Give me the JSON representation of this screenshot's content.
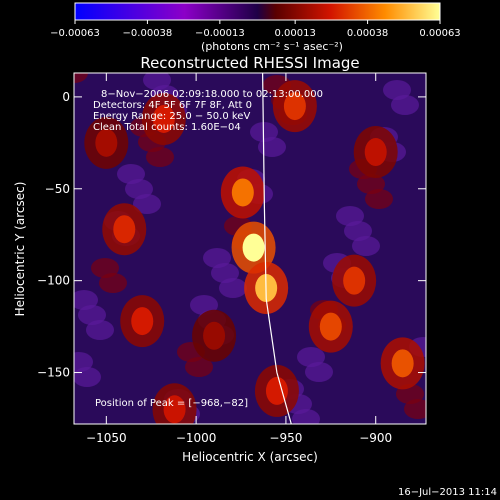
{
  "chart_data": {
    "type": "heatmap",
    "title": "Reconstructed RHESSI Image",
    "xlabel": "Heliocentric X (arcsec)",
    "ylabel": "Heliocentric Y (arcsec)",
    "xlim": [
      -1068,
      -872
    ],
    "ylim": [
      -178,
      13
    ],
    "x_ticks": [
      -1050,
      -1000,
      -950,
      -900
    ],
    "x_tick_labels": [
      "−1050",
      "−1000",
      "−950",
      "−900"
    ],
    "y_ticks": [
      0,
      -50,
      -100,
      -150
    ],
    "y_tick_labels": [
      "0",
      "−50",
      "−100",
      "−150"
    ],
    "colorbar": {
      "min": -0.00063,
      "max": 0.00063,
      "ticks": [
        -0.00063,
        -0.00038,
        -0.00013,
        0.00013,
        0.00038,
        0.00063
      ],
      "tick_labels": [
        "−0.00063",
        "−0.00038",
        "−0.00013",
        "0.00013",
        "0.00038",
        "0.00063"
      ],
      "units": "(photons cm⁻² s⁻¹ asec⁻²)"
    },
    "annotations": [
      "8−Nov−2006 02:09:18.000 to 02:13:00.000",
      "Detectors: 4F 5F 6F 7F 8F, Att 0",
      "Energy Range: 25.0 − 50.0 keV",
      "Clean    Total counts: 1.60E−04"
    ],
    "peak_text": "Position of Peak = [−968,−82]",
    "peak": [
      -968,
      -82
    ],
    "sources": [
      {
        "x": -968,
        "y": -82,
        "value": 0.00063
      },
      {
        "x": -961,
        "y": -104,
        "value": 0.00052
      },
      {
        "x": -974,
        "y": -52,
        "value": 0.0004
      },
      {
        "x": -945,
        "y": -5,
        "value": 0.0003
      },
      {
        "x": -1018,
        "y": -12,
        "value": 0.00026
      },
      {
        "x": -1040,
        "y": -72,
        "value": 0.00028
      },
      {
        "x": -1030,
        "y": -122,
        "value": 0.00026
      },
      {
        "x": -1012,
        "y": -170,
        "value": 0.00024
      },
      {
        "x": -925,
        "y": -125,
        "value": 0.00033
      },
      {
        "x": -912,
        "y": -100,
        "value": 0.0003
      },
      {
        "x": -885,
        "y": -145,
        "value": 0.00035
      },
      {
        "x": -900,
        "y": -30,
        "value": 0.00022
      },
      {
        "x": -955,
        "y": -160,
        "value": 0.00026
      },
      {
        "x": -1050,
        "y": -25,
        "value": 0.00018
      },
      {
        "x": -990,
        "y": -130,
        "value": 0.00016
      }
    ],
    "limb_line": [
      [
        -963,
        13
      ],
      [
        -962,
        -60
      ],
      [
        -961,
        -110
      ],
      [
        -955,
        -150
      ],
      [
        -947,
        -178
      ]
    ],
    "footer_date": "16−Jul−2013 11:14"
  }
}
